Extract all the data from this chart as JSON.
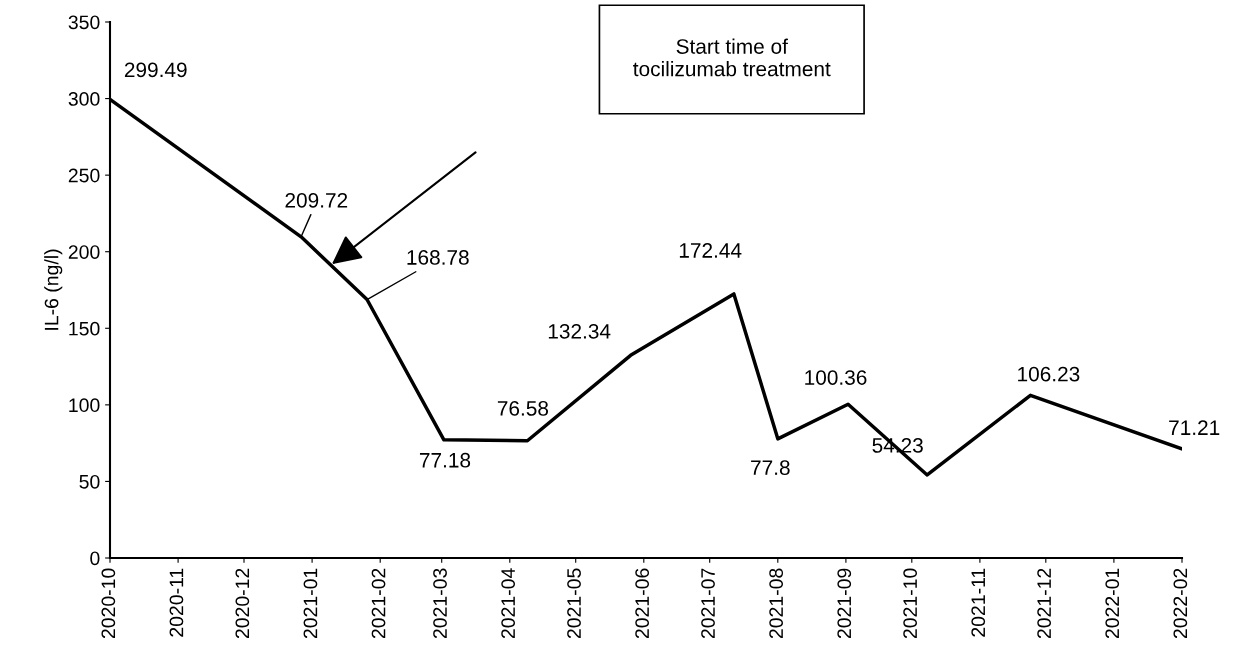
{
  "chart_data": {
    "type": "line",
    "ylabel": "IL-6 (ng/l)",
    "x": [
      "2020-10-01",
      "2020-12-27",
      "2021-01-26",
      "2021-03-02",
      "2021-04-09",
      "2021-05-26",
      "2021-07-12",
      "2021-08-01",
      "2021-09-02",
      "2021-10-08",
      "2021-11-24",
      "2022-02-01"
    ],
    "series": [
      {
        "color": "#000000",
        "values": [
          299.49,
          209.72,
          168.78,
          77.18,
          76.58,
          132.34,
          172.44,
          77.8,
          100.36,
          54.23,
          106.23,
          71.21
        ]
      }
    ],
    "data_labels": true,
    "marker": "none",
    "line_style": "solid",
    "grid": false,
    "xlim": [
      "2020-10-01",
      "2022-02-01"
    ],
    "xticks": [
      "2020-10",
      "2020-11",
      "2020-12",
      "2021-01",
      "2021-02",
      "2021-03",
      "2021-04",
      "2021-05",
      "2021-06",
      "2021-07",
      "2021-08",
      "2021-09",
      "2021-10",
      "2021-11",
      "2021-12",
      "2022-01",
      "2022-02"
    ],
    "ylim": [
      0,
      350
    ],
    "yticks": [
      0,
      50,
      100,
      150,
      200,
      250,
      300,
      350
    ],
    "annotations": [
      "Start time of\ntocilizumab treatment"
    ]
  }
}
